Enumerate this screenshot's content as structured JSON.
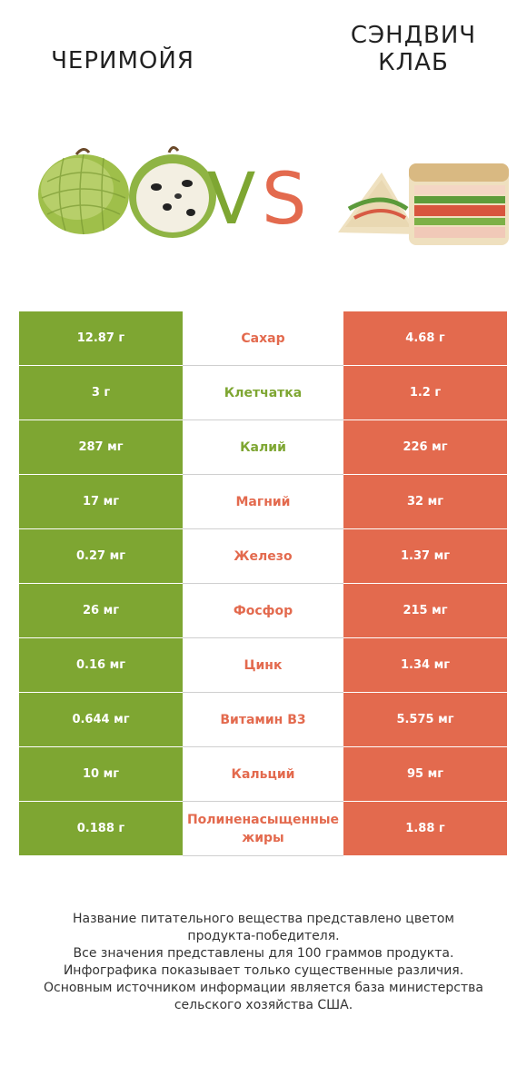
{
  "header": {
    "left_title": "ЧЕРИМОЙЯ",
    "right_title_line1": "СЭНДВИЧ",
    "right_title_line2": "КЛАБ",
    "vs_v": "V",
    "vs_s": "S"
  },
  "colors": {
    "left_accent": "#7ea632",
    "right_accent": "#e36a4e"
  },
  "rows": [
    {
      "left": "12.87 г",
      "name": "Сахар",
      "right": "4.68 г",
      "winner": "right"
    },
    {
      "left": "3 г",
      "name": "Клетчатка",
      "right": "1.2 г",
      "winner": "left"
    },
    {
      "left": "287 мг",
      "name": "Калий",
      "right": "226 мг",
      "winner": "left"
    },
    {
      "left": "17 мг",
      "name": "Магний",
      "right": "32 мг",
      "winner": "right"
    },
    {
      "left": "0.27 мг",
      "name": "Железо",
      "right": "1.37 мг",
      "winner": "right"
    },
    {
      "left": "26 мг",
      "name": "Фосфор",
      "right": "215 мг",
      "winner": "right"
    },
    {
      "left": "0.16 мг",
      "name": "Цинк",
      "right": "1.34 мг",
      "winner": "right"
    },
    {
      "left": "0.644 мг",
      "name": "Витамин B3",
      "right": "5.575 мг",
      "winner": "right"
    },
    {
      "left": "10 мг",
      "name": "Кальций",
      "right": "95 мг",
      "winner": "right"
    },
    {
      "left": "0.188 г",
      "name": "Полиненасыщенные жиры",
      "right": "1.88 г",
      "winner": "right"
    }
  ],
  "footer": {
    "line1": "Название питательного вещества представлено цветом",
    "line2": "продукта-победителя.",
    "line3": "Все значения представлены для 100 граммов продукта.",
    "line4": "Инфографика показывает только существенные различия.",
    "line5": "Основным источником информации является база министерства",
    "line6": "сельского хозяйства США."
  }
}
